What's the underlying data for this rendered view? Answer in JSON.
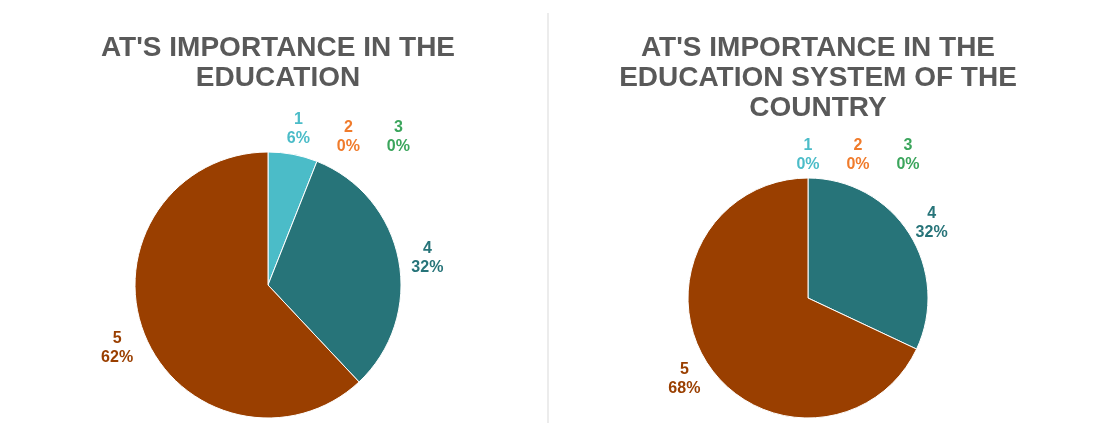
{
  "chart_data": [
    {
      "type": "pie",
      "title": "AT'S IMPORTANCE IN THE EDUCATION",
      "categories": [
        "1",
        "2",
        "3",
        "4",
        "5"
      ],
      "values": [
        6,
        0,
        0,
        32,
        62
      ],
      "colors": [
        "#4bbcc8",
        "#f07b2b",
        "#3ba55c",
        "#277479",
        "#9a3f00"
      ],
      "value_labels": [
        "6%",
        "0%",
        "0%",
        "32%",
        "62%"
      ]
    },
    {
      "type": "pie",
      "title": "AT'S IMPORTANCE IN THE EDUCATION SYSTEM OF THE COUNTRY",
      "categories": [
        "1",
        "2",
        "3",
        "4",
        "5"
      ],
      "values": [
        0,
        0,
        0,
        32,
        68
      ],
      "colors": [
        "#4bbcc8",
        "#f07b2b",
        "#3ba55c",
        "#277479",
        "#9a3f00"
      ],
      "value_labels": [
        "0%",
        "0%",
        "0%",
        "32%",
        "68%"
      ]
    }
  ]
}
